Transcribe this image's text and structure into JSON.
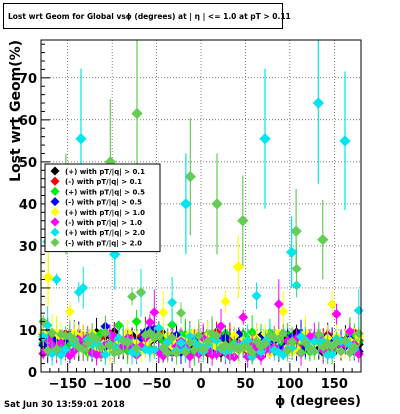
{
  "chart_data": {
    "type": "scatter",
    "title": "Lost wrt Geom for Global vsϕ (degrees) at | η | <= 1.0 at pT > 0.11",
    "xlabel": "ϕ (degrees)",
    "ylabel": "Lost wrt Geom(%)",
    "xlim": [
      -180,
      180
    ],
    "ylim": [
      0,
      79
    ],
    "x_ticks": [
      -150,
      -100,
      -50,
      0,
      50,
      100,
      150
    ],
    "y_ticks": [
      0,
      10,
      20,
      30,
      40,
      50,
      60,
      70
    ],
    "grid": true,
    "legend_position": "middle-left",
    "bins": 72,
    "series": [
      {
        "name": "(+) with pT/|q| > 0.1",
        "color": "#000000",
        "base": 7,
        "spread": 3
      },
      {
        "name": "(-) with pT/|q| > 0.1",
        "color": "#ff0000",
        "base": 7,
        "spread": 3
      },
      {
        "name": "(+) with pT/|q| > 0.5",
        "color": "#00ee00",
        "base": 7,
        "spread": 4
      },
      {
        "name": "(-) with pT/|q| > 0.5",
        "color": "#0000ff",
        "base": 7,
        "spread": 4
      },
      {
        "name": "(+) with pT/|q| > 1.0",
        "color": "#ffff00",
        "base": 7,
        "spread": 12
      },
      {
        "name": "(-) with pT/|q| > 1.0",
        "color": "#ff00ff",
        "base": 6,
        "spread": 10
      },
      {
        "name": "(+) with pT/|q| > 2.0",
        "color": "#00e5ee",
        "base": 6,
        "spread": 18
      },
      {
        "name": "(-) with pT/|q| > 2.0",
        "color": "#66cc55",
        "base": 7,
        "spread": 16
      }
    ],
    "highlights": [
      {
        "series": 6,
        "x": -135,
        "y": 55.5
      },
      {
        "series": 6,
        "x": 72,
        "y": 55.5
      },
      {
        "series": 6,
        "x": 132,
        "y": 64
      },
      {
        "series": 6,
        "x": 162,
        "y": 55
      },
      {
        "series": 7,
        "x": -102,
        "y": 50
      },
      {
        "series": 7,
        "x": -72,
        "y": 61.5
      },
      {
        "series": 7,
        "x": -12,
        "y": 46.5
      },
      {
        "series": 7,
        "x": 18,
        "y": 40
      },
      {
        "series": 7,
        "x": 47,
        "y": 36
      },
      {
        "series": 7,
        "x": 107,
        "y": 33.5
      },
      {
        "series": 7,
        "x": 137,
        "y": 31.5
      },
      {
        "series": 6,
        "x": -17,
        "y": 40
      },
      {
        "series": 6,
        "x": -172,
        "y": 31
      },
      {
        "series": 6,
        "x": -97,
        "y": 28
      },
      {
        "series": 6,
        "x": 102,
        "y": 28.5
      },
      {
        "series": 4,
        "x": -172,
        "y": 22.5
      },
      {
        "series": 4,
        "x": 42,
        "y": 25
      },
      {
        "series": 7,
        "x": -152,
        "y": 40
      }
    ]
  },
  "timestamp": "Sat Jun 30 13:59:01 2018"
}
